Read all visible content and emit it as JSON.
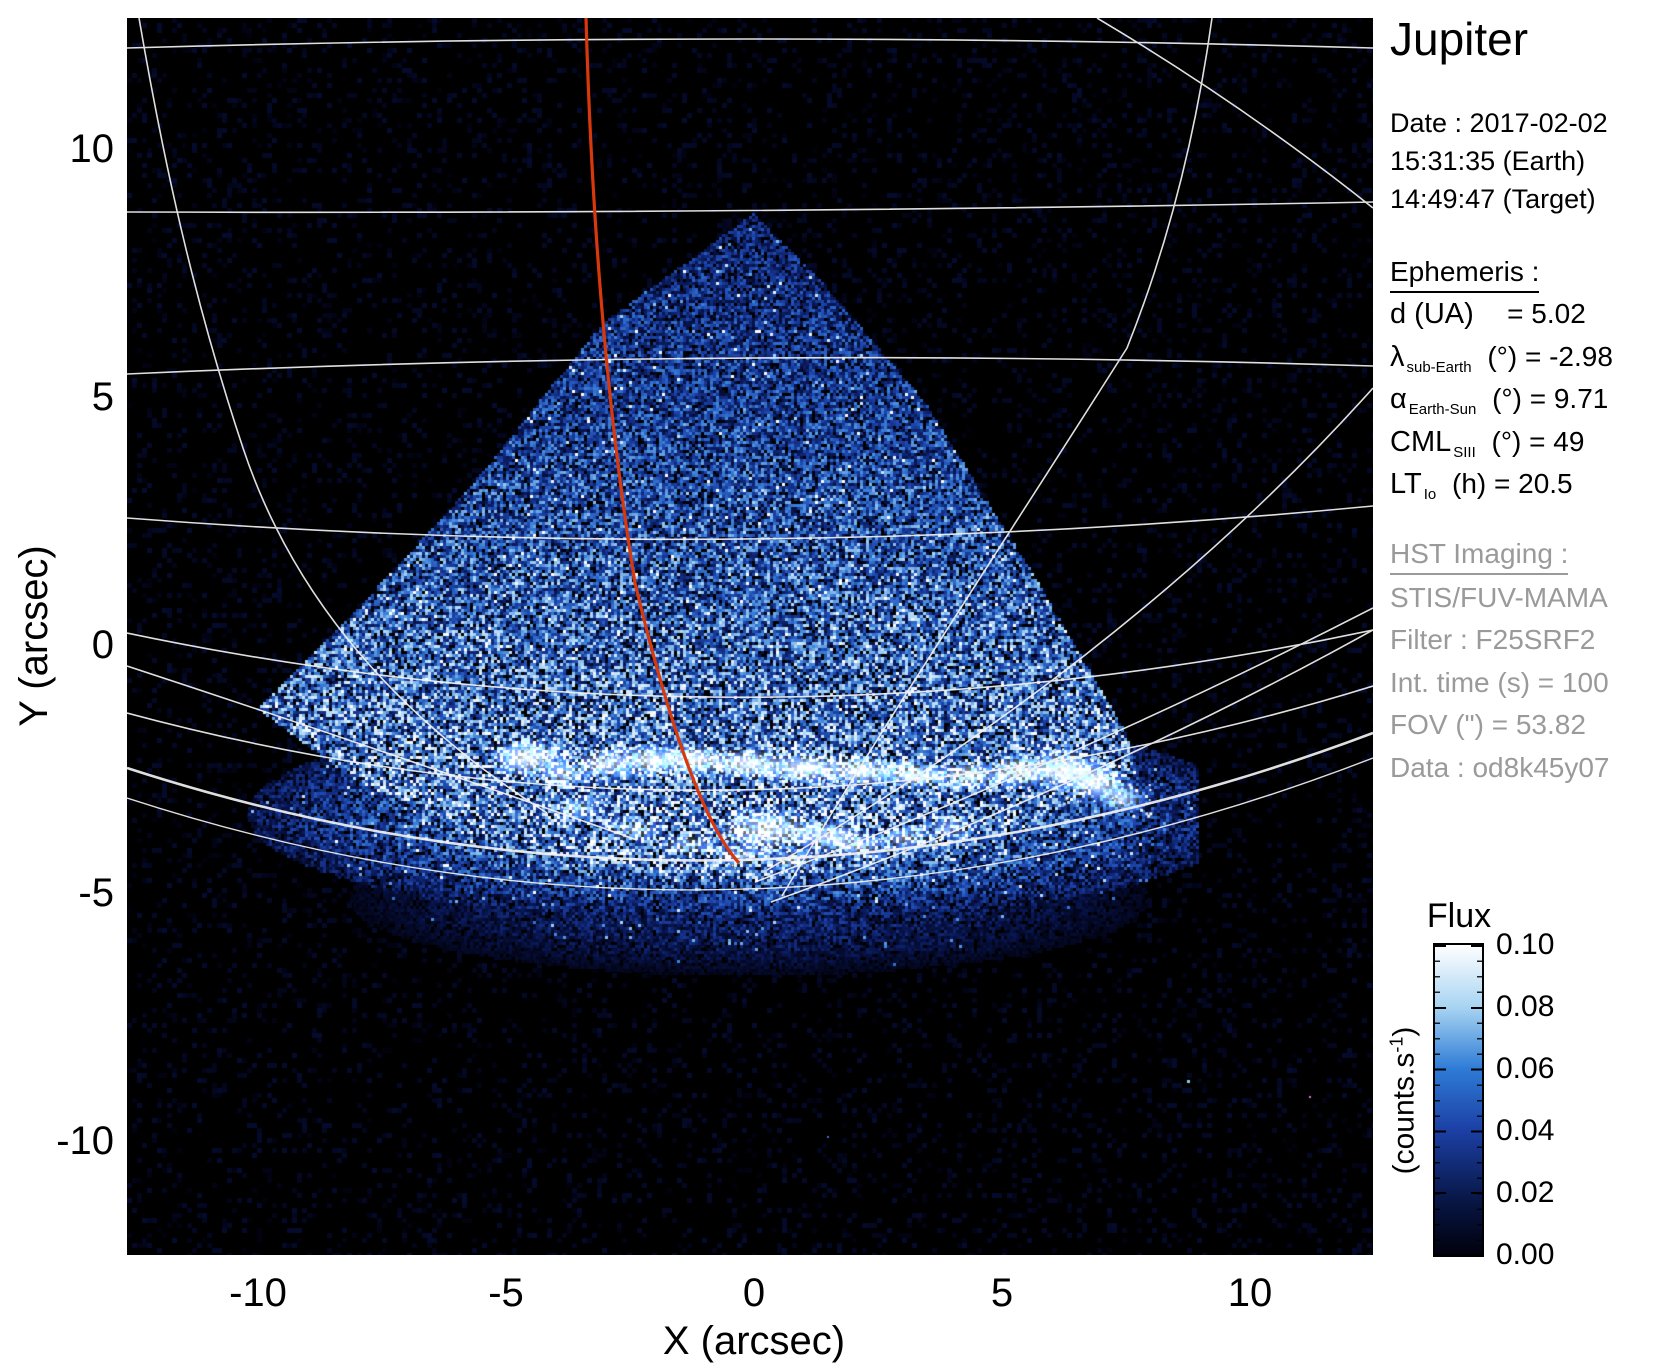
{
  "title": "Jupiter",
  "datetime": {
    "date": "Date : 2017-02-02",
    "earth": "15:31:35 (Earth)",
    "target": "14:49:47 (Target)"
  },
  "ephemeris": {
    "heading": "Ephemeris :",
    "rows": [
      {
        "sym": "d (UA)",
        "sub": "",
        "rest": "   = 5.02"
      },
      {
        "sym": "λ",
        "sub": "sub-Earth",
        "rest": " (°) = -2.98"
      },
      {
        "sym": "α",
        "sub": "Earth-Sun",
        "rest": " (°) = 9.71"
      },
      {
        "sym": "CML",
        "sub": "SIII",
        "rest": " (°) = 49"
      },
      {
        "sym": "LT",
        "sub": "Io",
        "rest": " (h) = 20.5"
      }
    ]
  },
  "hst": {
    "heading": "HST Imaging :",
    "lines": [
      "STIS/FUV-MAMA",
      "Filter : F25SRF2",
      "Int. time (s) = 100",
      "FOV (\") = 53.82",
      "Data : od8k45y07"
    ]
  },
  "axes": {
    "x_label": "X (arcsec)",
    "y_label": "Y (arcsec)",
    "x_ticks": [
      "-10",
      "-5",
      "0",
      "5",
      "10"
    ],
    "y_ticks": [
      "10",
      "5",
      "0",
      "-5",
      "-10"
    ]
  },
  "colorbar": {
    "title": "Flux",
    "unit_open": "(counts.s",
    "unit_sup": "-1",
    "unit_close": ")",
    "ticks": [
      "0.10",
      "0.08",
      "0.06",
      "0.04",
      "0.02",
      "0.00"
    ]
  },
  "colors": {
    "page_background": "#ffffff",
    "plot_background": "#000000",
    "graticule": "#f2f2f2",
    "red_meridian": "#d8380b",
    "hst_text_gray": "#9a9a9a",
    "flux_scale": [
      "#01010c",
      "#081747",
      "#1c3fa4",
      "#2e7bd6",
      "#a8d4f2",
      "#ffffff"
    ]
  },
  "chart_data": {
    "type": "heatmap",
    "title": "Jupiter",
    "xlabel": "X (arcsec)",
    "ylabel": "Y (arcsec)",
    "xlim": [
      -12.6,
      12.5
    ],
    "ylim": [
      -12.3,
      12.7
    ],
    "x_ticks": [
      -10,
      -5,
      0,
      5,
      10
    ],
    "y_ticks": [
      10,
      5,
      0,
      -5,
      -10
    ],
    "colorbar": {
      "label": "Flux (counts.s-1)",
      "range": [
        0.0,
        0.1
      ],
      "ticks": [
        0.0,
        0.02,
        0.04,
        0.06,
        0.08,
        0.1
      ]
    },
    "features": [
      {
        "name": "exposure-fan",
        "desc": "triangular wedge of faint blue speckled counts",
        "apex_arcsec": [
          0.0,
          8.7
        ],
        "base_corners_arcsec": [
          [
            -10.5,
            -1.8
          ],
          [
            7.5,
            -1.8
          ]
        ],
        "flux_range": [
          0.01,
          0.05
        ]
      },
      {
        "name": "auroral-oval",
        "desc": "bright white FUV auroral emission arc",
        "center_arcsec": [
          0.3,
          -3.1
        ],
        "x_extent_arcsec": [
          -5.2,
          7.3
        ],
        "peak_flux": 0.1
      },
      {
        "name": "red-meridian-track",
        "desc": "red curved reference line",
        "top_arcsec": [
          -3.4,
          12.7
        ],
        "end_arcsec": [
          -0.3,
          -4.4
        ]
      },
      {
        "name": "planetary-graticule",
        "desc": "white latitude/longitude grid of Jupiter disk",
        "grid": true
      }
    ],
    "legend_position": "right"
  }
}
